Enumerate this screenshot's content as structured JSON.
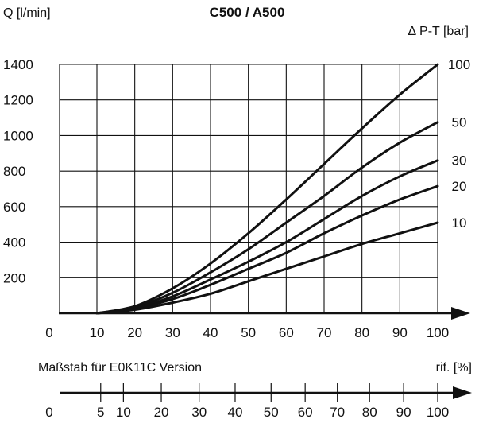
{
  "chart_data": {
    "type": "line",
    "title": "C500 / A500",
    "ylabel": "Q [l/min]",
    "series_label": "∆ P-T [bar]",
    "x_axis_end_label": "rif. [%]",
    "xlim": [
      0,
      100
    ],
    "ylim": [
      0,
      1400
    ],
    "x_ticks": [
      10,
      20,
      30,
      40,
      50,
      60,
      70,
      80,
      90,
      100
    ],
    "x_tick_labels": [
      "10",
      "20",
      "30",
      "40",
      "50",
      "60",
      "70",
      "80",
      "90",
      "100"
    ],
    "y_ticks": [
      200,
      400,
      600,
      800,
      1000,
      1200,
      1400
    ],
    "y_tick_labels": [
      "200",
      "400",
      "600",
      "800",
      "1000",
      "1200",
      "1400"
    ],
    "origin_label": "0",
    "grid": true,
    "series": [
      {
        "name": "100",
        "x": [
          10,
          20,
          30,
          40,
          50,
          60,
          70,
          80,
          90,
          100
        ],
        "y": [
          0,
          40,
          140,
          280,
          450,
          640,
          840,
          1040,
          1230,
          1400
        ]
      },
      {
        "name": "50",
        "x": [
          10,
          20,
          30,
          40,
          50,
          60,
          70,
          80,
          90,
          100
        ],
        "y": [
          0,
          35,
          115,
          230,
          360,
          510,
          660,
          820,
          960,
          1075
        ]
      },
      {
        "name": "30",
        "x": [
          10,
          20,
          30,
          40,
          50,
          60,
          70,
          80,
          90,
          100
        ],
        "y": [
          0,
          30,
          95,
          190,
          290,
          400,
          530,
          660,
          770,
          860
        ]
      },
      {
        "name": "20",
        "x": [
          10,
          20,
          30,
          40,
          50,
          60,
          70,
          80,
          90,
          100
        ],
        "y": [
          0,
          25,
          80,
          160,
          250,
          340,
          450,
          550,
          640,
          715
        ]
      },
      {
        "name": "10",
        "x": [
          10,
          20,
          30,
          40,
          50,
          60,
          70,
          80,
          90,
          100
        ],
        "y": [
          0,
          20,
          60,
          110,
          180,
          250,
          320,
          390,
          450,
          510
        ]
      }
    ],
    "secondary_scale": {
      "label": "Maßstab für E0K11C Version",
      "origin_label": "0",
      "ticks": [
        {
          "label": "5",
          "main_x": 11
        },
        {
          "label": "10",
          "main_x": 17
        },
        {
          "label": "20",
          "main_x": 27
        },
        {
          "label": "30",
          "main_x": 37
        },
        {
          "label": "40",
          "main_x": 46.5
        },
        {
          "label": "50",
          "main_x": 56
        },
        {
          "label": "60",
          "main_x": 65
        },
        {
          "label": "70",
          "main_x": 73.5
        },
        {
          "label": "80",
          "main_x": 82
        },
        {
          "label": "90",
          "main_x": 91
        },
        {
          "label": "100",
          "main_x": 100
        }
      ]
    }
  }
}
